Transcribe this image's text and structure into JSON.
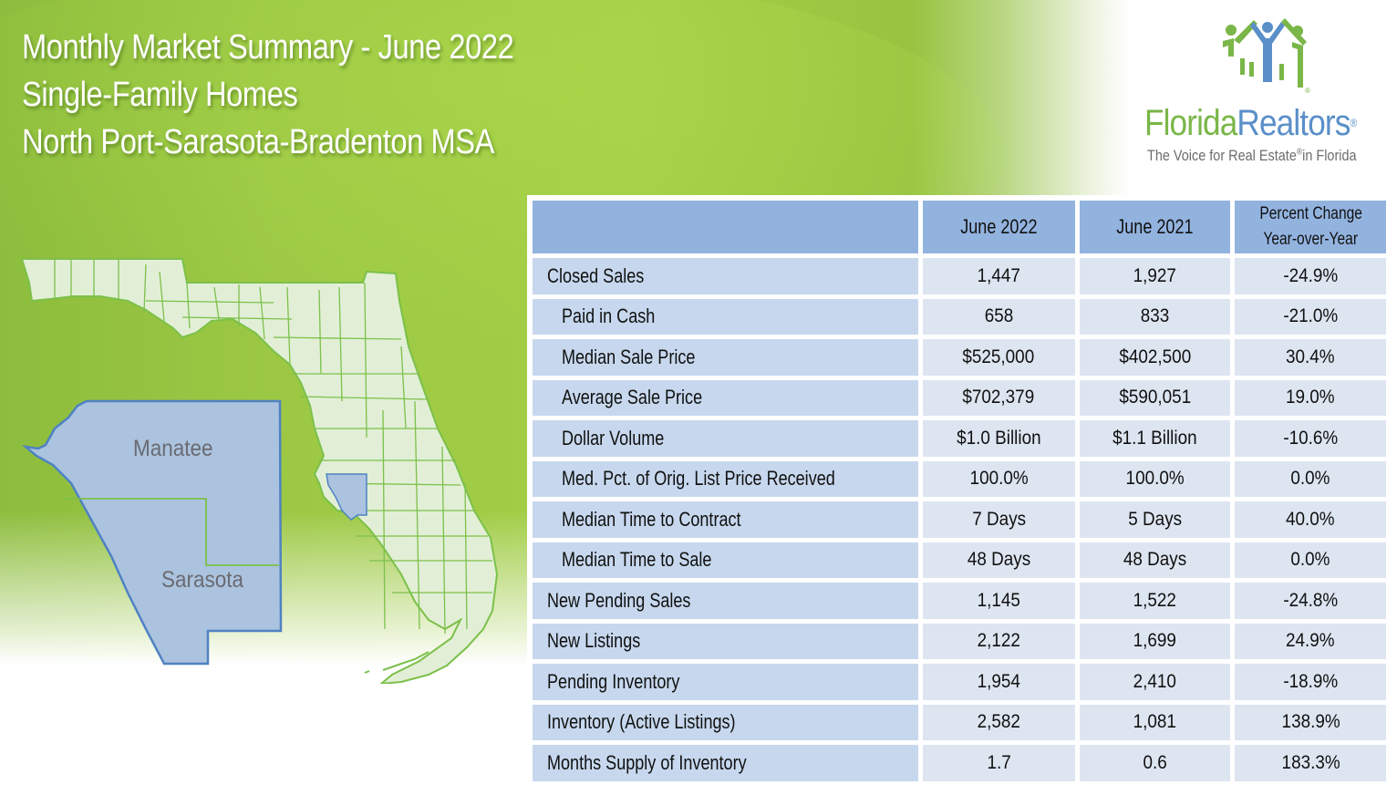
{
  "header": {
    "title_lines": [
      "Monthly Market Summary - June 2022",
      "Single-Family Homes",
      "North Port-Sarasota-Bradenton MSA"
    ]
  },
  "logo": {
    "icon": "people-house-icon",
    "word1": "Florida",
    "word2": "Realtors",
    "registered": "®",
    "tagline_pre": "The Voice for Real Estate",
    "tagline_reg": "®",
    "tagline_post": "in Florida"
  },
  "map": {
    "icon": "florida-county-map",
    "inset_counties": [
      "Manatee",
      "Sarasota"
    ],
    "highlight_color": "#abc3de",
    "outline_color": "#4f82c2",
    "state_fill": "#e2efd6",
    "county_line_color": "#7cc04a"
  },
  "table": {
    "columns": [
      "",
      "June 2022",
      "June 2021",
      "Percent Change\nYear-over-Year"
    ],
    "column_header_line1": "Percent Change",
    "column_header_line2": "Year-over-Year",
    "rows": [
      {
        "label": "Closed Sales",
        "indent": false,
        "june_2022": "1,447",
        "june_2021": "1,927",
        "pct_change": "-24.9%"
      },
      {
        "label": "Paid in Cash",
        "indent": true,
        "june_2022": "658",
        "june_2021": "833",
        "pct_change": "-21.0%"
      },
      {
        "label": "Median Sale Price",
        "indent": true,
        "june_2022": "$525,000",
        "june_2021": "$402,500",
        "pct_change": "30.4%"
      },
      {
        "label": "Average Sale Price",
        "indent": true,
        "june_2022": "$702,379",
        "june_2021": "$590,051",
        "pct_change": "19.0%"
      },
      {
        "label": "Dollar Volume",
        "indent": true,
        "june_2022": "$1.0 Billion",
        "june_2021": "$1.1 Billion",
        "pct_change": "-10.6%"
      },
      {
        "label": "Med. Pct. of Orig. List Price Received",
        "indent": true,
        "june_2022": "100.0%",
        "june_2021": "100.0%",
        "pct_change": "0.0%"
      },
      {
        "label": "Median Time to Contract",
        "indent": true,
        "june_2022": "7 Days",
        "june_2021": "5 Days",
        "pct_change": "40.0%"
      },
      {
        "label": "Median Time to Sale",
        "indent": true,
        "june_2022": "48 Days",
        "june_2021": "48 Days",
        "pct_change": "0.0%"
      },
      {
        "label": "New Pending Sales",
        "indent": false,
        "june_2022": "1,145",
        "june_2021": "1,522",
        "pct_change": "-24.8%"
      },
      {
        "label": "New Listings",
        "indent": false,
        "june_2022": "2,122",
        "june_2021": "1,699",
        "pct_change": "24.9%"
      },
      {
        "label": "Pending Inventory",
        "indent": false,
        "june_2022": "1,954",
        "june_2021": "2,410",
        "pct_change": "-18.9%"
      },
      {
        "label": "Inventory (Active Listings)",
        "indent": false,
        "june_2022": "2,582",
        "june_2021": "1,081",
        "pct_change": "138.9%"
      },
      {
        "label": "Months Supply of Inventory",
        "indent": false,
        "june_2022": "1.7",
        "june_2021": "0.6",
        "pct_change": "183.3%"
      }
    ],
    "header_color": "#93b3df",
    "label_color": "#c7d8ee",
    "value_color": "#dde5f1"
  }
}
